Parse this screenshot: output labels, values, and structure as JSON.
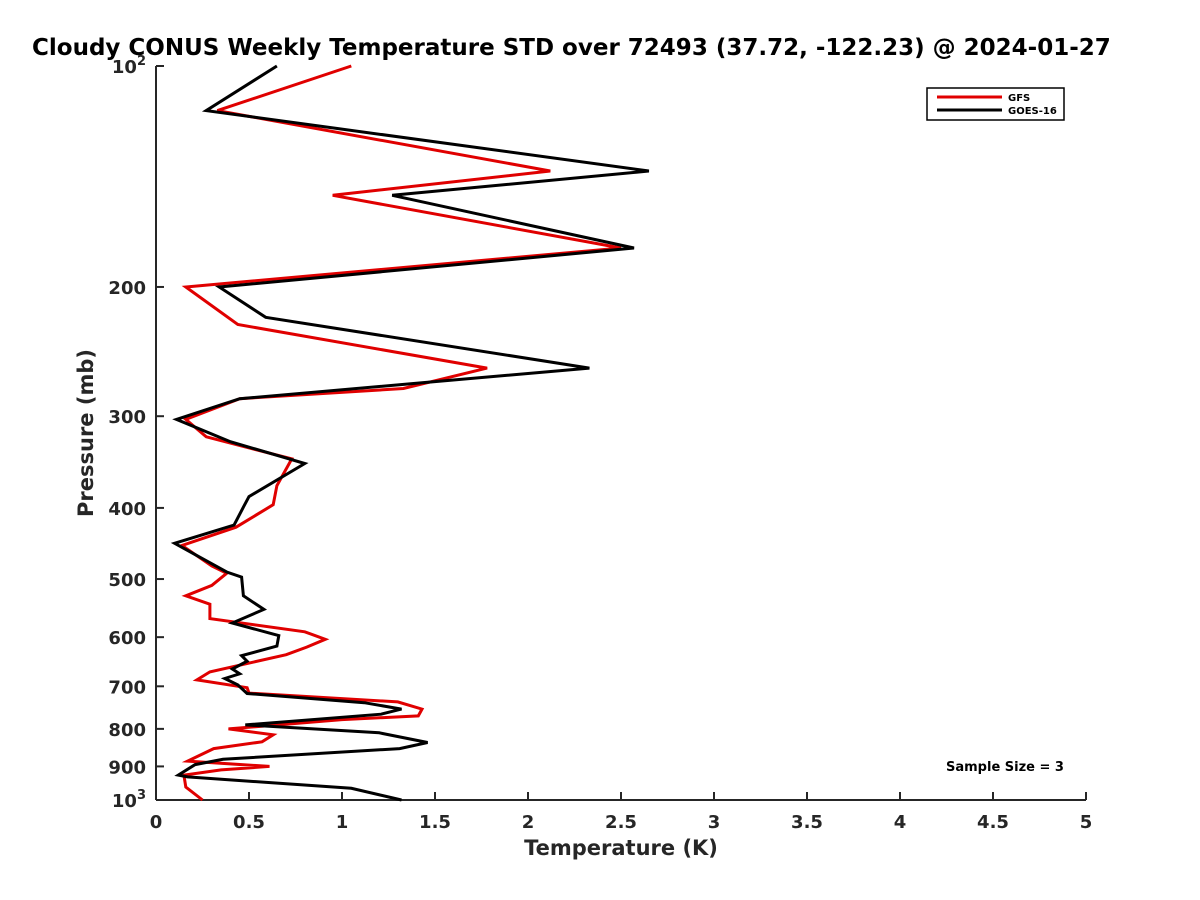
{
  "chart_data": {
    "type": "line",
    "title": "Cloudy CONUS Weekly Temperature STD over 72493 (37.72, -122.23) @ 2024-01-27",
    "xlabel": "Temperature (K)",
    "ylabel": "Pressure (mb)",
    "xlim": [
      0,
      5
    ],
    "ylim": [
      100,
      1000
    ],
    "y_scale": "log",
    "y_reversed": true,
    "grid": false,
    "legend_position": "top-right",
    "x_ticks": [
      "0",
      "0.5",
      "1",
      "1.5",
      "2",
      "2.5",
      "3",
      "3.5",
      "4",
      "4.5",
      "5"
    ],
    "y_ticks": [
      {
        "value": 100,
        "base": "10",
        "exp": "2"
      },
      {
        "value": 200,
        "label": "200"
      },
      {
        "value": 300,
        "label": "300"
      },
      {
        "value": 400,
        "label": "400"
      },
      {
        "value": 500,
        "label": "500"
      },
      {
        "value": 600,
        "label": "600"
      },
      {
        "value": 700,
        "label": "700"
      },
      {
        "value": 800,
        "label": "800"
      },
      {
        "value": 900,
        "label": "900"
      },
      {
        "value": 1000,
        "base": "10",
        "exp": "3"
      }
    ],
    "annotation": "Sample Size = 3",
    "series": [
      {
        "name": "GFS",
        "color": "#e00000",
        "points": [
          [
            1.05,
            100
          ],
          [
            0.33,
            115
          ],
          [
            2.12,
            139
          ],
          [
            0.95,
            150
          ],
          [
            2.5,
            177
          ],
          [
            0.16,
            200
          ],
          [
            0.44,
            225
          ],
          [
            1.78,
            258
          ],
          [
            1.33,
            275
          ],
          [
            0.45,
            284
          ],
          [
            0.16,
            303
          ],
          [
            0.27,
            320
          ],
          [
            0.73,
            343
          ],
          [
            0.65,
            373
          ],
          [
            0.63,
            396
          ],
          [
            0.43,
            425
          ],
          [
            0.14,
            450
          ],
          [
            0.3,
            480
          ],
          [
            0.38,
            491
          ],
          [
            0.3,
            510
          ],
          [
            0.16,
            527
          ],
          [
            0.29,
            541
          ],
          [
            0.29,
            566
          ],
          [
            0.8,
            590
          ],
          [
            0.91,
            604
          ],
          [
            0.81,
            619
          ],
          [
            0.7,
            634
          ],
          [
            0.29,
            669
          ],
          [
            0.22,
            686
          ],
          [
            0.49,
            703
          ],
          [
            0.5,
            715
          ],
          [
            1.3,
            735
          ],
          [
            1.43,
            752
          ],
          [
            1.41,
            768
          ],
          [
            1.0,
            777
          ],
          [
            0.39,
            800
          ],
          [
            0.63,
            815
          ],
          [
            0.57,
            833
          ],
          [
            0.31,
            851
          ],
          [
            0.17,
            885
          ],
          [
            0.61,
            900
          ],
          [
            0.35,
            910
          ],
          [
            0.15,
            925
          ],
          [
            0.16,
            960
          ],
          [
            0.25,
            1000
          ]
        ]
      },
      {
        "name": "GOES-16",
        "color": "#000000",
        "points": [
          [
            0.65,
            100
          ],
          [
            0.27,
            115
          ],
          [
            2.65,
            139
          ],
          [
            1.27,
            150
          ],
          [
            2.57,
            177
          ],
          [
            0.34,
            200
          ],
          [
            0.59,
            220
          ],
          [
            2.33,
            258
          ],
          [
            0.45,
            284
          ],
          [
            0.11,
            303
          ],
          [
            0.4,
            325
          ],
          [
            0.8,
            348
          ],
          [
            0.5,
            386
          ],
          [
            0.47,
            399
          ],
          [
            0.42,
            422
          ],
          [
            0.1,
            447
          ],
          [
            0.38,
            489
          ],
          [
            0.46,
            497
          ],
          [
            0.47,
            527
          ],
          [
            0.58,
            550
          ],
          [
            0.41,
            574
          ],
          [
            0.66,
            597
          ],
          [
            0.65,
            617
          ],
          [
            0.46,
            636
          ],
          [
            0.49,
            647
          ],
          [
            0.41,
            663
          ],
          [
            0.45,
            673
          ],
          [
            0.37,
            683
          ],
          [
            0.44,
            697
          ],
          [
            0.49,
            716
          ],
          [
            1.12,
            737
          ],
          [
            1.32,
            752
          ],
          [
            1.21,
            764
          ],
          [
            0.48,
            790
          ],
          [
            1.2,
            810
          ],
          [
            1.46,
            835
          ],
          [
            1.31,
            851
          ],
          [
            0.36,
            880
          ],
          [
            0.21,
            895
          ],
          [
            0.12,
            925
          ],
          [
            0.17,
            930
          ],
          [
            1.05,
            964
          ],
          [
            1.32,
            1000
          ]
        ]
      }
    ]
  }
}
